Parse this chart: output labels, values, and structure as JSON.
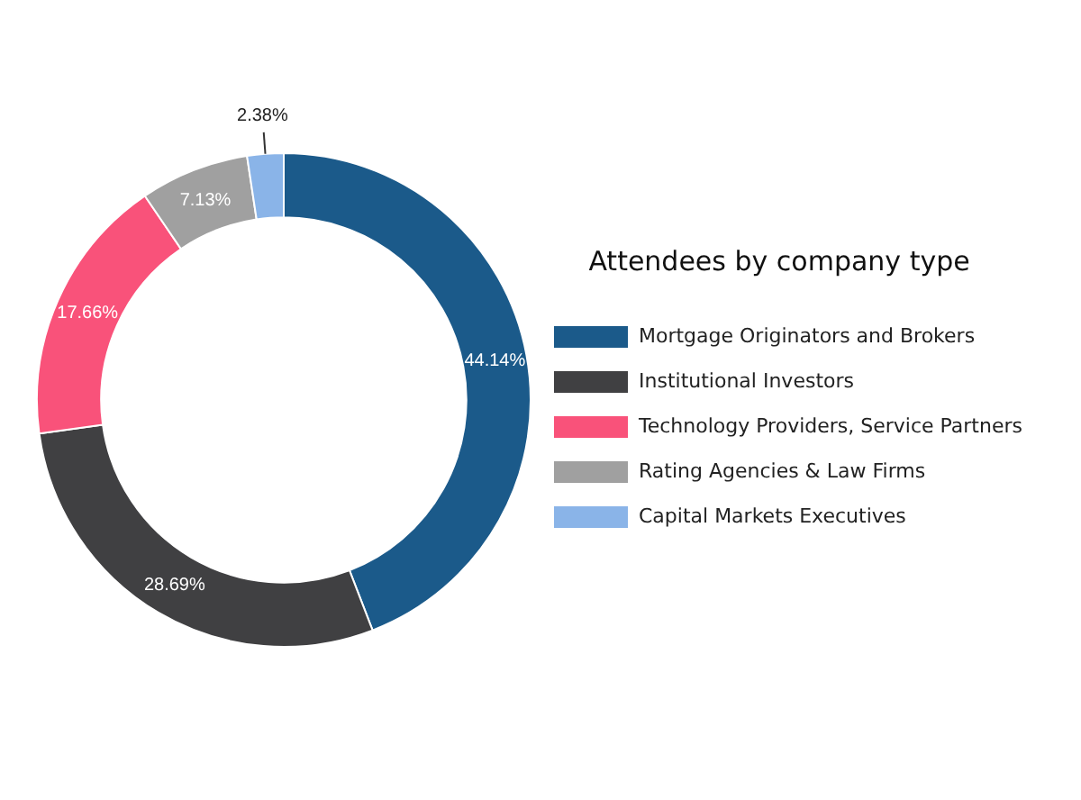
{
  "chart_data": {
    "type": "donut",
    "legend_title": "Attendees by company type",
    "legend": "right",
    "categories": [
      "Mortgage Originators and Brokers",
      "Institutional Investors",
      "Technology Providers, Service Partners",
      "Rating Agencies & Law Firms",
      "Capital Markets Executives"
    ],
    "values": [
      44.14,
      28.69,
      17.66,
      7.13,
      2.38
    ],
    "colors": [
      "#1b5a8a",
      "#404042",
      "#f9527a",
      "#a0a0a0",
      "#8ab4e8"
    ],
    "value_labels": [
      "44.14%",
      "28.69%",
      "17.66%",
      "7.13%",
      "2.38%"
    ]
  }
}
